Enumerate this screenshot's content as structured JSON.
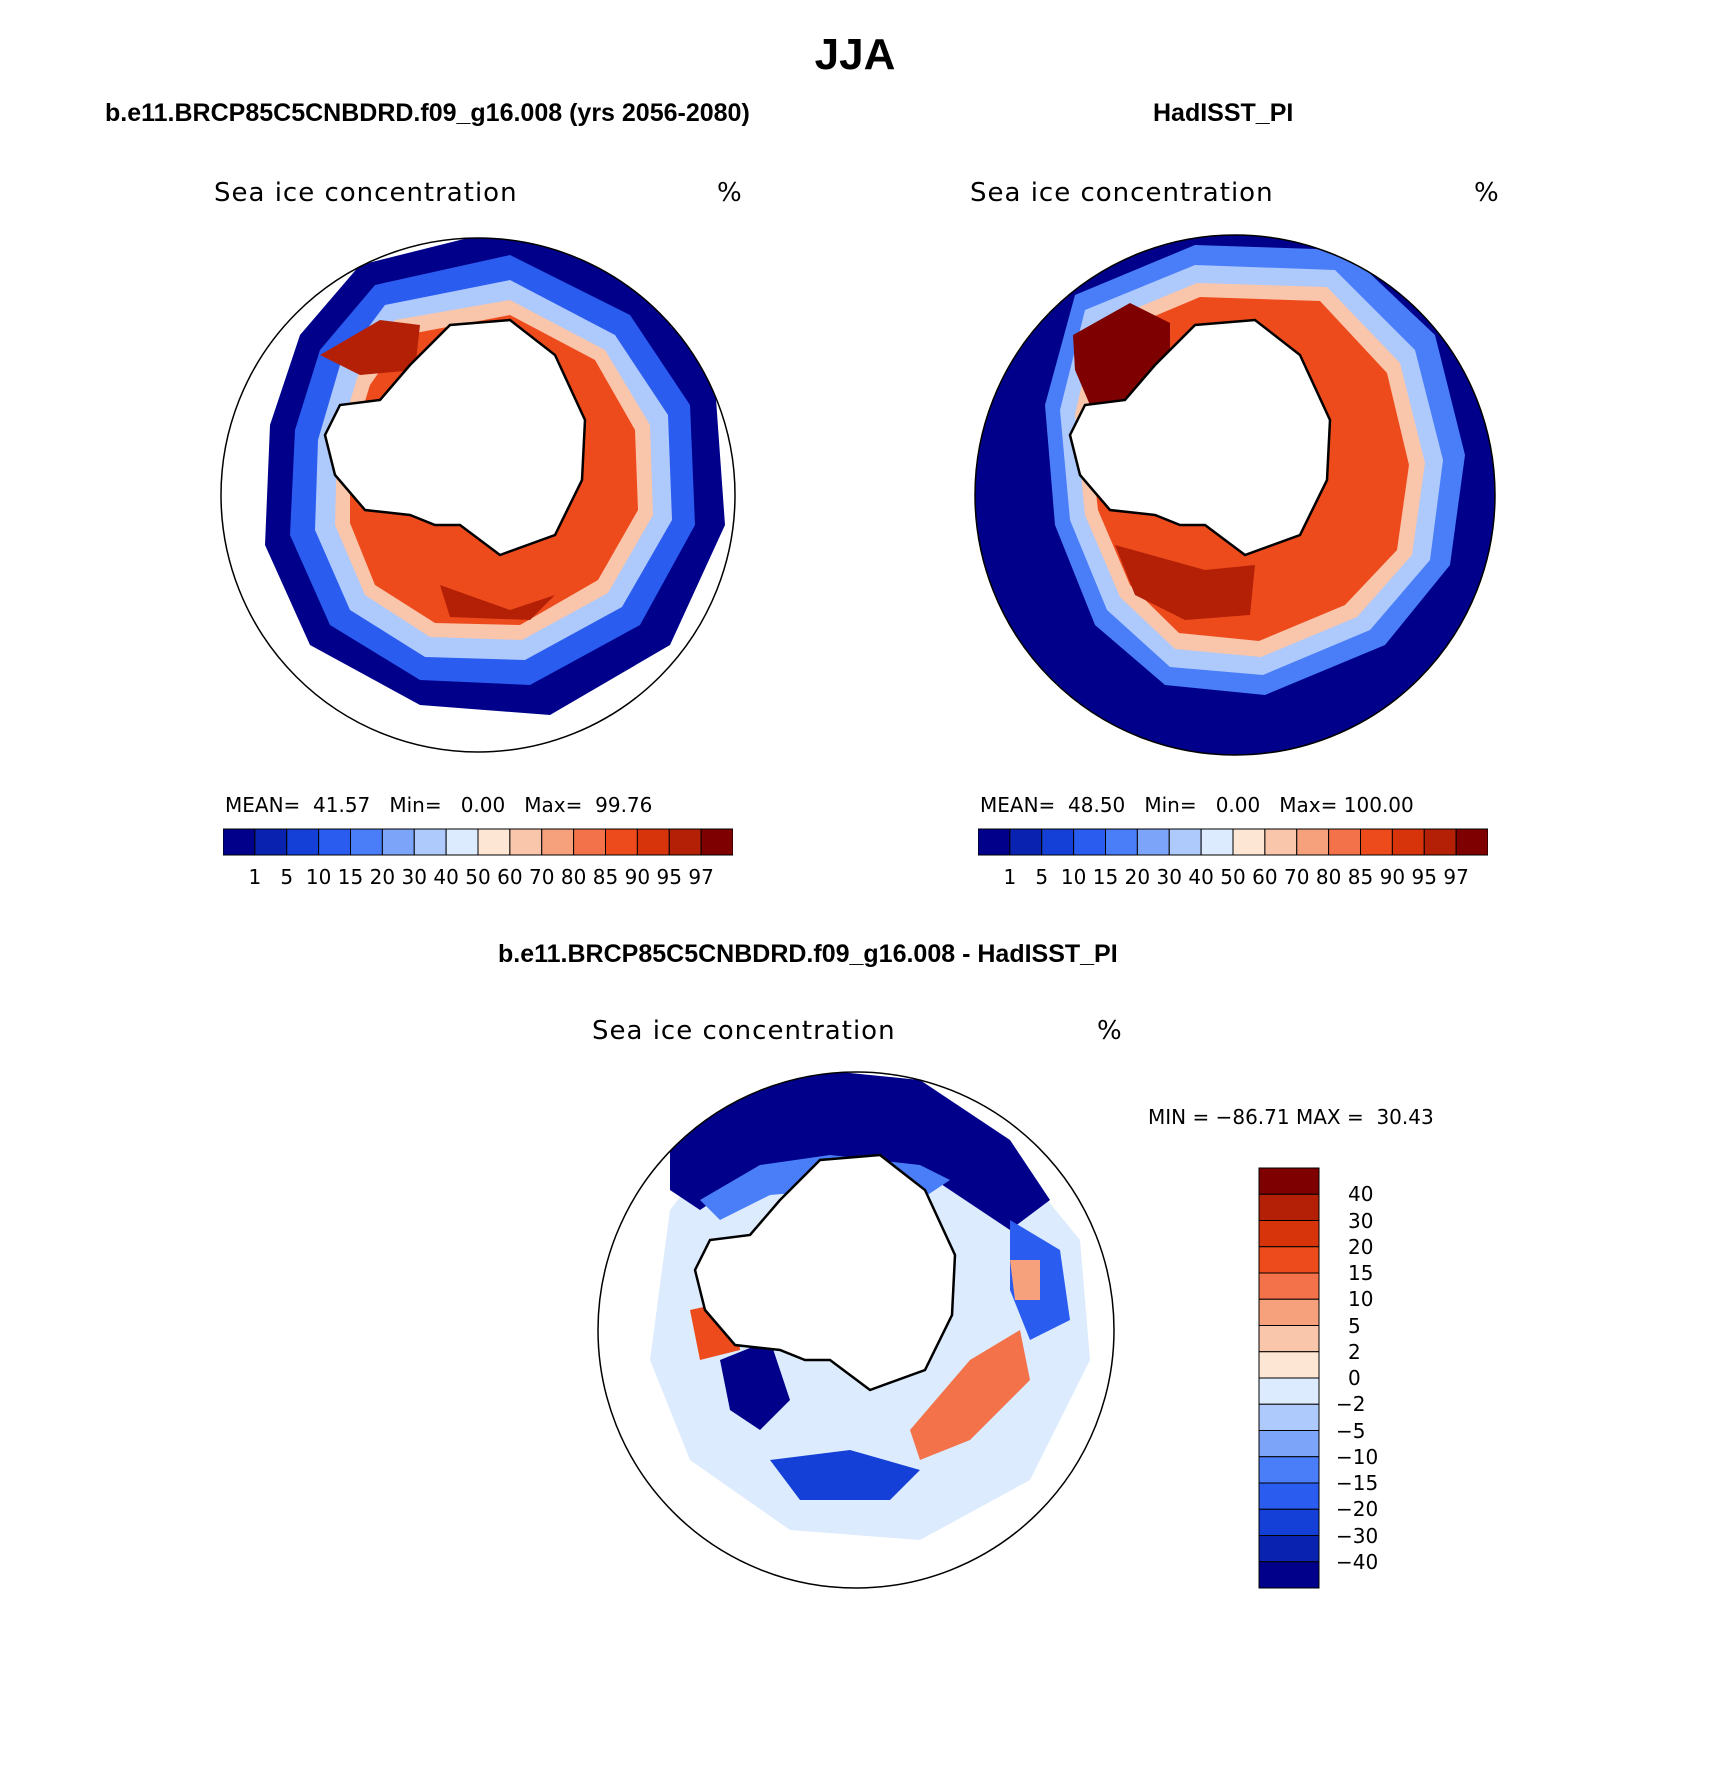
{
  "figure": {
    "title": "JJA"
  },
  "palette": {
    "colors": [
      "#00008a",
      "#0a22b0",
      "#1440d8",
      "#2a5cf0",
      "#4a7ef8",
      "#7ca4f8",
      "#aec9fb",
      "#dcebfd",
      "#fde6d4",
      "#f9c5ab",
      "#f7a07c",
      "#f47249",
      "#ee4b1c",
      "#d8340b",
      "#b32006",
      "#7e0000"
    ]
  },
  "panels": {
    "left": {
      "title": "b.e11.BRCP85C5CNBDRD.f09_g16.008 (yrs 2056-2080)",
      "variable": "Sea ice concentration",
      "units": "%",
      "stats": {
        "mean_label": "MEAN=",
        "mean": "41.57",
        "min_label": "Min=",
        "min": "0.00",
        "max_label": "Max=",
        "max": "99.76"
      }
    },
    "right": {
      "title": "HadISST_PI",
      "variable": "Sea ice concentration",
      "units": "%",
      "stats": {
        "mean_label": "MEAN=",
        "mean": "48.50",
        "min_label": "Min=",
        "min": "0.00",
        "max_label": "Max=",
        "max": "100.00"
      }
    },
    "diff": {
      "title": "b.e11.BRCP85C5CNBDRD.f09_g16.008 - HadISST_PI",
      "variable": "Sea ice concentration",
      "units": "%",
      "stats": {
        "min_label": "MIN =",
        "min": "−86.71",
        "max_label": "MAX =",
        "max": "30.43"
      }
    }
  },
  "colorbar_levels": [
    "1",
    "5",
    "10",
    "15",
    "20",
    "30",
    "40",
    "50",
    "60",
    "70",
    "80",
    "85",
    "90",
    "95",
    "97"
  ],
  "diff_levels": [
    "40",
    "30",
    "20",
    "15",
    "10",
    "5",
    "2",
    "0",
    "−2",
    "−5",
    "−10",
    "−15",
    "−20",
    "−30",
    "−40"
  ]
}
